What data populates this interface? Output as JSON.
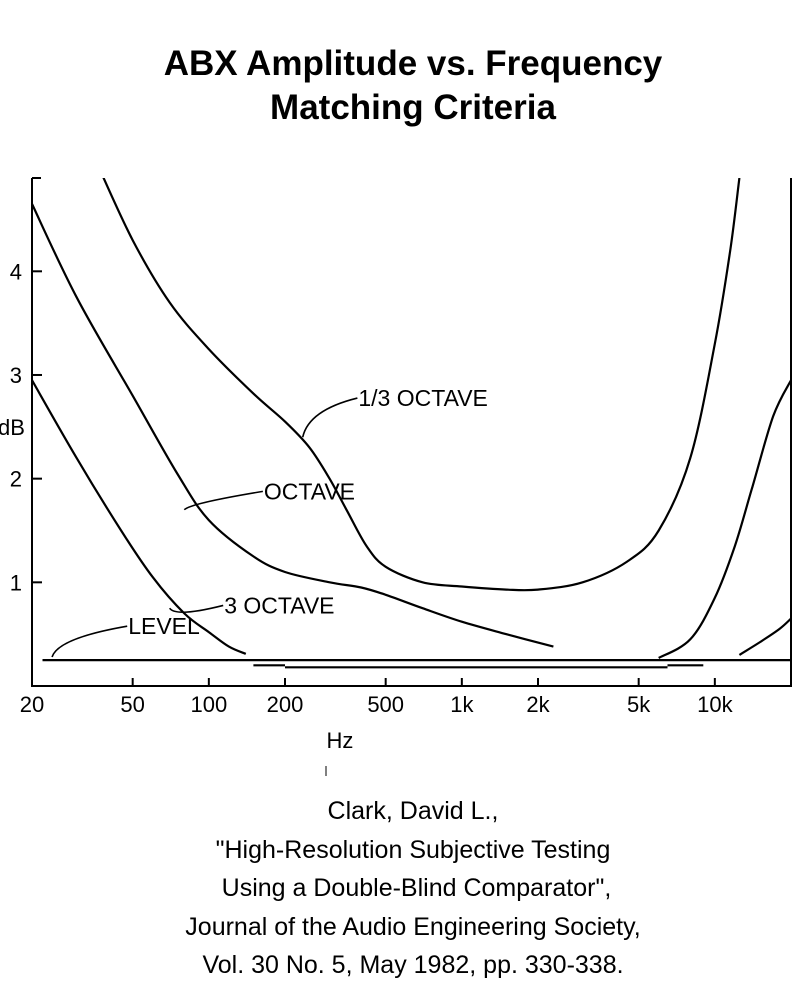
{
  "chart_data": {
    "type": "line",
    "title": [
      "ABX Amplitude vs. Frequency",
      "Matching Criteria"
    ],
    "xlabel": "Hz",
    "ylabel": "dB",
    "xscale": "log",
    "xlim": [
      20,
      20000
    ],
    "ylim": [
      0,
      4.9
    ],
    "grid": false,
    "xticks": [
      {
        "value": 20,
        "label": "20"
      },
      {
        "value": 50,
        "label": "50"
      },
      {
        "value": 100,
        "label": "100"
      },
      {
        "value": 200,
        "label": "200"
      },
      {
        "value": 500,
        "label": "500"
      },
      {
        "value": 1000,
        "label": "1k"
      },
      {
        "value": 2000,
        "label": "2k"
      },
      {
        "value": 5000,
        "label": "5k"
      },
      {
        "value": 10000,
        "label": "10k"
      }
    ],
    "yticks": [
      {
        "value": 1,
        "label": "1"
      },
      {
        "value": 2,
        "label": "2"
      },
      {
        "value": 3,
        "label": "3"
      },
      {
        "value": 4,
        "label": "4"
      }
    ],
    "series": [
      {
        "name": "1/3 OCTAVE",
        "points": [
          [
            36,
            5.05
          ],
          [
            50,
            4.3
          ],
          [
            70,
            3.7
          ],
          [
            100,
            3.25
          ],
          [
            150,
            2.82
          ],
          [
            200,
            2.55
          ],
          [
            250,
            2.3
          ],
          [
            300,
            2.0
          ],
          [
            350,
            1.7
          ],
          [
            420,
            1.35
          ],
          [
            500,
            1.15
          ],
          [
            700,
            1.0
          ],
          [
            1000,
            0.96
          ],
          [
            1500,
            0.93
          ],
          [
            2000,
            0.93
          ],
          [
            3000,
            1.0
          ],
          [
            4500,
            1.2
          ],
          [
            6000,
            1.5
          ],
          [
            8000,
            2.2
          ],
          [
            10000,
            3.3
          ],
          [
            11500,
            4.2
          ],
          [
            12500,
            4.9
          ]
        ]
      },
      {
        "name": "OCTAVE",
        "points": [
          [
            20,
            4.65
          ],
          [
            30,
            3.75
          ],
          [
            50,
            2.8
          ],
          [
            75,
            2.05
          ],
          [
            100,
            1.6
          ],
          [
            150,
            1.25
          ],
          [
            200,
            1.1
          ],
          [
            300,
            1.0
          ],
          [
            400,
            0.95
          ],
          [
            500,
            0.88
          ],
          [
            700,
            0.75
          ],
          [
            1000,
            0.62
          ],
          [
            1500,
            0.5
          ],
          [
            2300,
            0.38
          ]
        ]
      },
      {
        "name": "3 OCTAVE",
        "points": [
          [
            20,
            2.95
          ],
          [
            30,
            2.2
          ],
          [
            45,
            1.5
          ],
          [
            60,
            1.05
          ],
          [
            80,
            0.7
          ],
          [
            100,
            0.52
          ],
          [
            120,
            0.38
          ],
          [
            140,
            0.31
          ]
        ]
      },
      {
        "name": "OCTAVE",
        "points": [
          [
            6000,
            0.27
          ],
          [
            8000,
            0.45
          ],
          [
            10000,
            0.85
          ],
          [
            12000,
            1.35
          ],
          [
            14000,
            1.9
          ],
          [
            17000,
            2.6
          ],
          [
            20000,
            2.95
          ]
        ]
      },
      {
        "name": "1/3 OCTAVE",
        "points": [
          [
            12500,
            0.3
          ],
          [
            15000,
            0.42
          ],
          [
            18000,
            0.55
          ],
          [
            20000,
            0.65
          ]
        ]
      },
      {
        "name": "LEVEL",
        "points": [
          [
            22,
            0.25
          ],
          [
            20000,
            0.25
          ]
        ]
      },
      {
        "name": "LEVEL",
        "points": [
          [
            150,
            0.2
          ],
          [
            200,
            0.2
          ]
        ]
      },
      {
        "name": "LEVEL",
        "points": [
          [
            200,
            0.18
          ],
          [
            6500,
            0.18
          ]
        ]
      },
      {
        "name": "LEVEL",
        "points": [
          [
            6500,
            0.2
          ],
          [
            9000,
            0.2
          ]
        ]
      }
    ],
    "labels": [
      {
        "text": "1/3 OCTAVE",
        "at": [
          235,
          2.4
        ],
        "text_at": [
          390,
          2.7
        ]
      },
      {
        "text": "OCTAVE",
        "at": [
          80,
          1.7
        ],
        "text_at": [
          165,
          1.8
        ]
      },
      {
        "text": "3 OCTAVE",
        "at": [
          70,
          0.75
        ],
        "text_at": [
          115,
          0.7
        ]
      },
      {
        "text": "LEVEL",
        "at": [
          24,
          0.28
        ],
        "text_at": [
          48,
          0.5
        ]
      }
    ]
  },
  "citation": {
    "lines": [
      "Clark, David L.,",
      "\"High-Resolution Subjective Testing",
      " Using a Double-Blind Comparator\",",
      "Journal of the Audio Engineering Society,",
      "Vol. 30 No. 5, May 1982, pp. 330-338."
    ]
  }
}
